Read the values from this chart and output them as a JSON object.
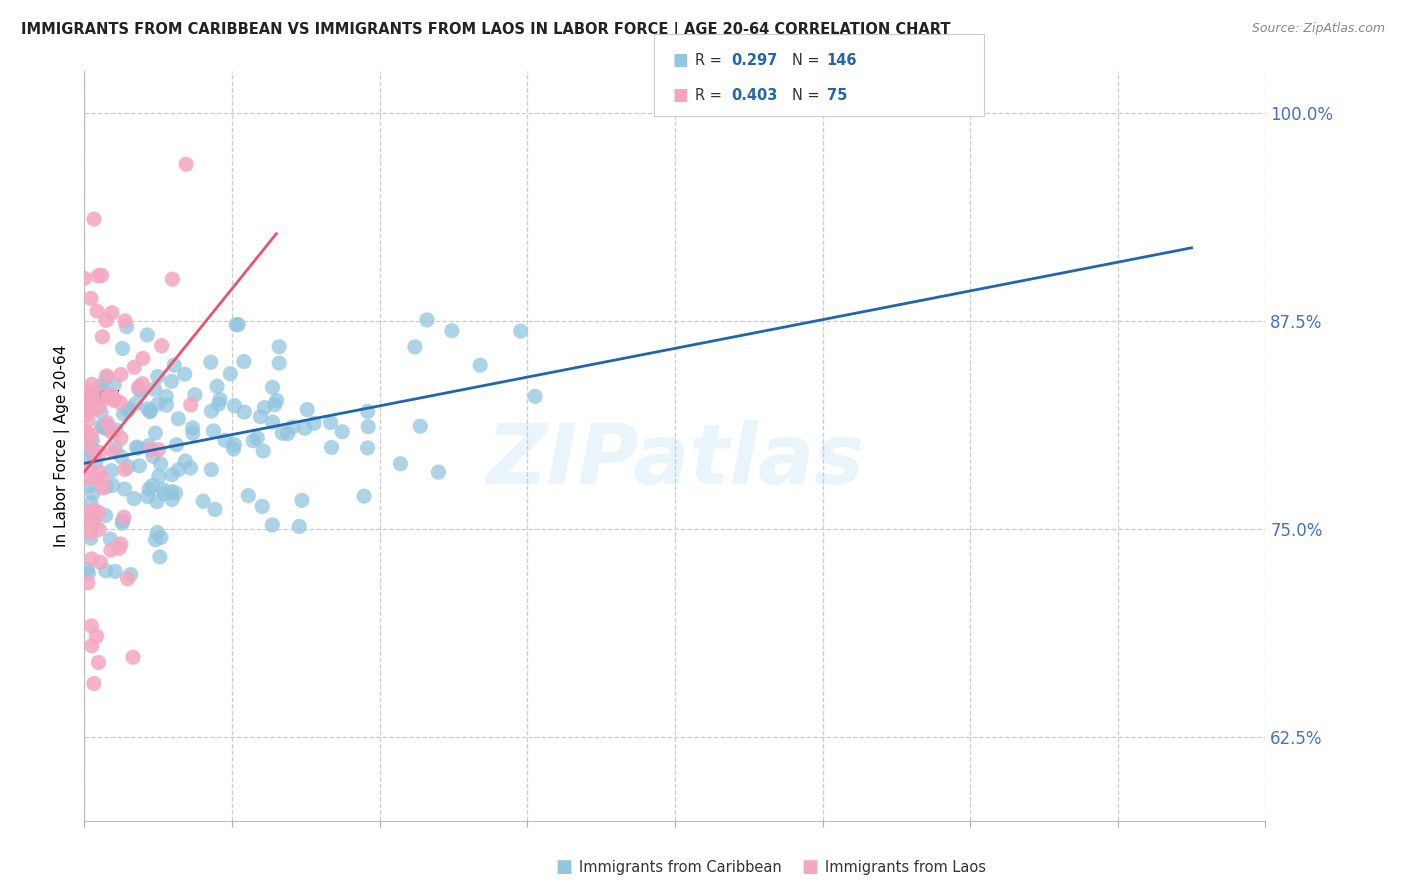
{
  "title": "IMMIGRANTS FROM CARIBBEAN VS IMMIGRANTS FROM LAOS IN LABOR FORCE | AGE 20-64 CORRELATION CHART",
  "source": "Source: ZipAtlas.com",
  "ylabel": "In Labor Force | Age 20-64",
  "ytick_vals": [
    0.625,
    0.75,
    0.875,
    1.0
  ],
  "ytick_labels": [
    "62.5%",
    "75.0%",
    "87.5%",
    "100.0%"
  ],
  "xlim": [
    0.0,
    0.8
  ],
  "ylim": [
    0.575,
    1.025
  ],
  "caribbean_color": "#92c5de",
  "laos_color": "#f4a6c0",
  "caribbean_line_color": "#2166ac",
  "laos_line_color": "#e8546a",
  "R_caribbean": 0.297,
  "N_caribbean": 146,
  "R_laos": 0.403,
  "N_laos": 75,
  "watermark": "ZIPatlas",
  "legend_label_1": "Immigrants from Caribbean",
  "legend_label_2": "Immigrants from Laos",
  "background_color": "#ffffff",
  "title_color": "#222222",
  "ytick_color": "#4472c4",
  "legend_text_color": "#1a1a1a",
  "legend_val_color": "#2166ac"
}
